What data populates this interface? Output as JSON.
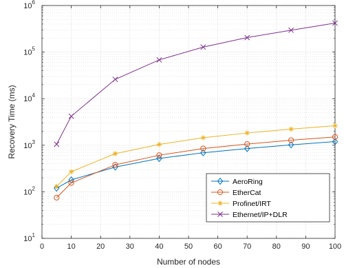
{
  "chart_data": {
    "type": "line",
    "xlabel": "Number of nodes",
    "ylabel": "Recovery Time (ms)",
    "xlim": [
      0,
      100
    ],
    "ylim": [
      10,
      1000000
    ],
    "yscale": "log",
    "grid": true,
    "legend_position": "bottom-right",
    "x_ticks": [
      0,
      10,
      20,
      30,
      40,
      50,
      60,
      70,
      80,
      90,
      100
    ],
    "y_ticks": [
      {
        "base": "10",
        "exp": "1",
        "value": 10
      },
      {
        "base": "10",
        "exp": "2",
        "value": 100
      },
      {
        "base": "10",
        "exp": "3",
        "value": 1000
      },
      {
        "base": "10",
        "exp": "4",
        "value": 10000
      },
      {
        "base": "10",
        "exp": "5",
        "value": 100000
      },
      {
        "base": "10",
        "exp": "6",
        "value": 1000000
      }
    ],
    "x": [
      5,
      10,
      25,
      40,
      55,
      70,
      85,
      100
    ],
    "series": [
      {
        "name": "AeroRing",
        "color": "#0072BD",
        "marker": "diamond",
        "values": [
          120,
          180,
          340,
          520,
          690,
          850,
          1020,
          1200
        ]
      },
      {
        "name": "EtherCat",
        "color": "#D95319",
        "marker": "circle",
        "values": [
          75,
          155,
          380,
          610,
          850,
          1060,
          1280,
          1510
        ]
      },
      {
        "name": "Profinet/IRT",
        "color": "#EDB120",
        "marker": "star",
        "values": [
          130,
          270,
          660,
          1040,
          1450,
          1830,
          2220,
          2620
        ]
      },
      {
        "name": "Ethernet/IP+DLR",
        "color": "#7E2F8E",
        "marker": "x",
        "values": [
          1050,
          4200,
          26000,
          68000,
          128000,
          205000,
          295000,
          420000
        ]
      }
    ]
  }
}
